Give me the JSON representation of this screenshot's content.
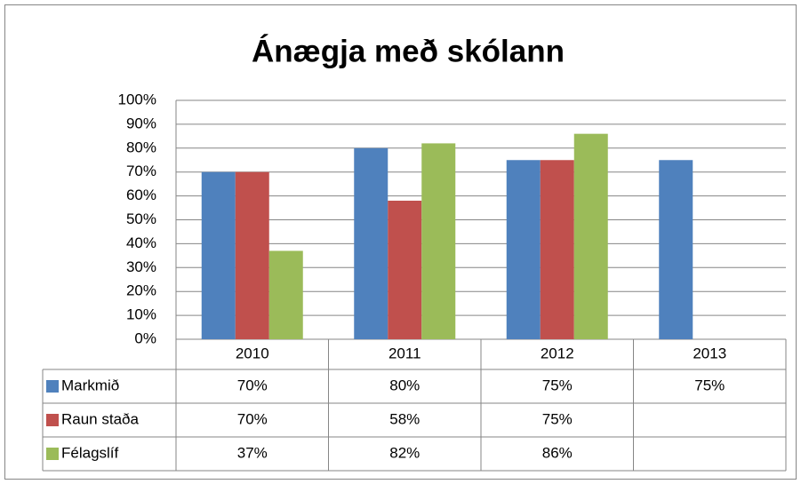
{
  "chart_data": {
    "type": "bar",
    "title": "Ánægja með skólann",
    "categories": [
      "2010",
      "2011",
      "2012",
      "2013"
    ],
    "series": [
      {
        "name": "Markmið",
        "color": "#4f81bd",
        "values": [
          70,
          80,
          75,
          75
        ],
        "value_labels": [
          "70%",
          "80%",
          "75%",
          "75%"
        ]
      },
      {
        "name": "Raun staða",
        "color": "#c0504d",
        "values": [
          70,
          58,
          75,
          null
        ],
        "value_labels": [
          "70%",
          "58%",
          "75%",
          null
        ]
      },
      {
        "name": "Félagslíf",
        "color": "#9bbb59",
        "values": [
          37,
          82,
          86,
          null
        ],
        "value_labels": [
          "37%",
          "82%",
          "86%",
          null
        ]
      }
    ],
    "ylim": [
      0,
      100
    ],
    "yticks": [
      {
        "value": 0,
        "label": "0%"
      },
      {
        "value": 10,
        "label": "10%"
      },
      {
        "value": 20,
        "label": "20%"
      },
      {
        "value": 30,
        "label": "30%"
      },
      {
        "value": 40,
        "label": "40%"
      },
      {
        "value": 50,
        "label": "50%"
      },
      {
        "value": 60,
        "label": "60%"
      },
      {
        "value": 70,
        "label": "70%"
      },
      {
        "value": 80,
        "label": "80%"
      },
      {
        "value": 90,
        "label": "90%"
      },
      {
        "value": 100,
        "label": "100%"
      }
    ],
    "grid": true
  }
}
